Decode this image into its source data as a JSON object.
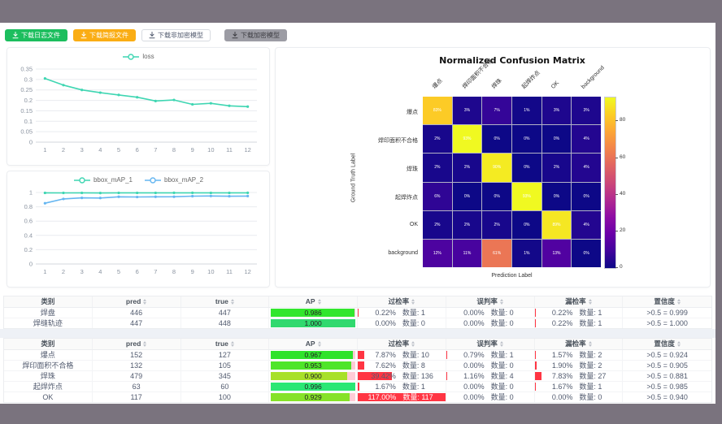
{
  "toolbar": {
    "buttons": [
      {
        "id": "download-log-file",
        "label": "下载日志文件",
        "bg": "#1cbe5e",
        "color": "#ffffff",
        "border": "#1cbe5e"
      },
      {
        "id": "download-report-file",
        "label": "下载简报文件",
        "bg": "#faad14",
        "color": "#ffffff",
        "border": "#faad14"
      },
      {
        "id": "download-unencrypted-model",
        "label": "下载非加密模型",
        "bg": "#ffffff",
        "color": "#515a6e",
        "border": "#d7dbe0"
      },
      {
        "id": "download-encrypted-model",
        "label": "下载加密模型",
        "bg": "#9c9ca4",
        "color": "#3c3c42",
        "border": "#9c9ca4"
      }
    ]
  },
  "chart_data": [
    {
      "id": "loss",
      "type": "line",
      "title": "",
      "x": [
        1,
        2,
        3,
        4,
        5,
        6,
        7,
        8,
        9,
        10,
        11,
        12
      ],
      "yticks": [
        0,
        0.05,
        0.1,
        0.15,
        0.2,
        0.25,
        0.3,
        0.35
      ],
      "legend_position": "top",
      "grid": true,
      "series": [
        {
          "name": "loss",
          "color": "#3fd6b2",
          "values": [
            0.305,
            0.273,
            0.25,
            0.237,
            0.226,
            0.215,
            0.197,
            0.202,
            0.181,
            0.186,
            0.174,
            0.17
          ]
        }
      ]
    },
    {
      "id": "map",
      "type": "line",
      "title": "",
      "x": [
        1,
        2,
        3,
        4,
        5,
        6,
        7,
        8,
        9,
        10,
        11,
        12
      ],
      "yticks": [
        0,
        0.2,
        0.4,
        0.6,
        0.8,
        1
      ],
      "legend_position": "top",
      "grid": true,
      "series": [
        {
          "name": "bbox_mAP_1",
          "color": "#3fd6b2",
          "values": [
            0.995,
            0.994,
            0.995,
            0.993,
            0.995,
            0.995,
            0.995,
            0.996,
            0.996,
            0.995,
            0.995,
            0.996
          ]
        },
        {
          "name": "bbox_mAP_2",
          "color": "#65b6f1",
          "values": [
            0.85,
            0.91,
            0.925,
            0.923,
            0.94,
            0.937,
            0.94,
            0.941,
            0.949,
            0.951,
            0.948,
            0.95
          ]
        }
      ]
    },
    {
      "id": "confusion",
      "type": "heatmap",
      "title": "Normalized Confusion Matrix",
      "xlabel": "Prediction Label",
      "ylabel": "Ground Truth Label",
      "labels": [
        "爆点",
        "焊印面积不合格",
        "焊珠",
        "起焊炸点",
        "OK",
        "background"
      ],
      "unit": "%",
      "vmax": 93,
      "colorbar_ticks": [
        0,
        20,
        40,
        60,
        80
      ],
      "values": [
        [
          83,
          3,
          7,
          1,
          3,
          3
        ],
        [
          2,
          93,
          0,
          0,
          0,
          4
        ],
        [
          2,
          2,
          90,
          0,
          2,
          4
        ],
        [
          6,
          0,
          0,
          93,
          0,
          0
        ],
        [
          2,
          2,
          2,
          0,
          89,
          4
        ],
        [
          12,
          11,
          61,
          1,
          13,
          0
        ]
      ]
    }
  ],
  "tables": {
    "count_label": "数量",
    "headers": [
      {
        "label": "类别",
        "sortable": false
      },
      {
        "label": "pred",
        "sortable": true
      },
      {
        "label": "true",
        "sortable": true
      },
      {
        "label": "AP",
        "sortable": true
      },
      {
        "label": "过检率",
        "sortable": true
      },
      {
        "label": "误判率",
        "sortable": true
      },
      {
        "label": "漏检率",
        "sortable": true
      },
      {
        "label": "置信度",
        "sortable": true
      }
    ],
    "groups": [
      {
        "rows": [
          {
            "category": "焊盘",
            "pred": "446",
            "true": "447",
            "ap": 0.986,
            "ap_label": "0.986",
            "ap_color": "#32e62d",
            "over": {
              "pct": "0.22%",
              "val": 0.22,
              "count": "1"
            },
            "mis": {
              "pct": "0.00%",
              "val": 0,
              "count": "0"
            },
            "miss": {
              "pct": "0.22%",
              "val": 0.22,
              "count": "1"
            },
            "conf": ">0.5 = 0.999"
          },
          {
            "category": "焊缝轨迹",
            "pred": "447",
            "true": "448",
            "ap": 1.0,
            "ap_label": "1.000",
            "ap_color": "#31d96f",
            "over": {
              "pct": "0.00%",
              "val": 0,
              "count": "0"
            },
            "mis": {
              "pct": "0.00%",
              "val": 0,
              "count": "0"
            },
            "miss": {
              "pct": "0.22%",
              "val": 0.22,
              "count": "1"
            },
            "conf": ">0.5 = 1.000"
          }
        ]
      },
      {
        "rows": [
          {
            "category": "爆点",
            "pred": "152",
            "true": "127",
            "ap": 0.967,
            "ap_label": "0.967",
            "ap_color": "#2fe32b",
            "over": {
              "pct": "7.87%",
              "val": 7.87,
              "count": "10"
            },
            "mis": {
              "pct": "0.79%",
              "val": 0.79,
              "count": "1"
            },
            "miss": {
              "pct": "1.57%",
              "val": 1.57,
              "count": "2"
            },
            "conf": ">0.5 = 0.924"
          },
          {
            "category": "焊印面积不合格",
            "pred": "132",
            "true": "105",
            "ap": 0.953,
            "ap_label": "0.953",
            "ap_color": "#4fe529",
            "over": {
              "pct": "7.62%",
              "val": 7.62,
              "count": "8"
            },
            "mis": {
              "pct": "0.00%",
              "val": 0,
              "count": "0"
            },
            "miss": {
              "pct": "1.90%",
              "val": 1.9,
              "count": "2"
            },
            "conf": ">0.5 = 0.905"
          },
          {
            "category": "焊珠",
            "pred": "479",
            "true": "345",
            "ap": 0.9,
            "ap_label": "0.900",
            "ap_color": "#a8e02a",
            "over": {
              "pct": "39.42%",
              "val": 39.42,
              "count": "136"
            },
            "mis": {
              "pct": "1.16%",
              "val": 1.16,
              "count": "4"
            },
            "miss": {
              "pct": "7.83%",
              "val": 7.83,
              "count": "27"
            },
            "conf": ">0.5 = 0.881"
          },
          {
            "category": "起焊炸点",
            "pred": "63",
            "true": "60",
            "ap": 0.996,
            "ap_label": "0.996",
            "ap_color": "#2ae774",
            "over": {
              "pct": "1.67%",
              "val": 1.67,
              "count": "1"
            },
            "mis": {
              "pct": "0.00%",
              "val": 0,
              "count": "0"
            },
            "miss": {
              "pct": "1.67%",
              "val": 1.67,
              "count": "1"
            },
            "conf": ">0.5 = 0.985"
          },
          {
            "category": "OK",
            "pred": "117",
            "true": "100",
            "ap": 0.929,
            "ap_label": "0.929",
            "ap_color": "#86e228",
            "over": {
              "pct": "117.00%",
              "val": 117,
              "count": "117"
            },
            "mis": {
              "pct": "0.00%",
              "val": 0,
              "count": "0"
            },
            "miss": {
              "pct": "0.00%",
              "val": 0,
              "count": "0"
            },
            "conf": ">0.5 = 0.940"
          }
        ]
      }
    ]
  }
}
